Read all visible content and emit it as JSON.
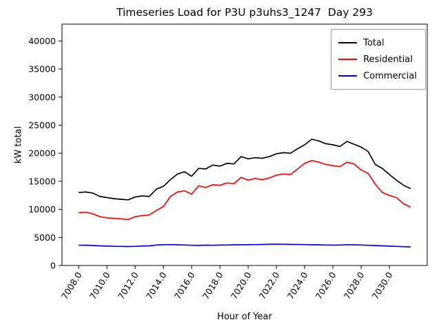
{
  "chart_data": {
    "type": "line",
    "title": "Timeseries Load for P3U p3uhs3_1247  Day 293",
    "xlabel": "Hour of Year",
    "ylabel": "kW total",
    "xlim": [
      7006.82,
      7032.68
    ],
    "ylim": [
      0,
      43000
    ],
    "xticks": [
      7008.0,
      7010.0,
      7012.0,
      7014.0,
      7016.0,
      7018.0,
      7020.0,
      7022.0,
      7024.0,
      7026.0,
      7028.0,
      7030.0
    ],
    "yticks": [
      0,
      5000,
      10000,
      15000,
      20000,
      25000,
      30000,
      35000,
      40000
    ],
    "grid": false,
    "legend_position": "upper right",
    "x": [
      7008.0,
      7008.5,
      7009.0,
      7009.5,
      7010.0,
      7010.5,
      7011.0,
      7011.5,
      7012.0,
      7012.5,
      7013.0,
      7013.5,
      7014.0,
      7014.5,
      7015.0,
      7015.5,
      7016.0,
      7016.5,
      7017.0,
      7017.5,
      7018.0,
      7018.5,
      7019.0,
      7019.5,
      7020.0,
      7020.5,
      7021.0,
      7021.5,
      7022.0,
      7022.5,
      7023.0,
      7023.5,
      7024.0,
      7024.5,
      7025.0,
      7025.5,
      7026.0,
      7026.5,
      7027.0,
      7027.5,
      7028.0,
      7028.5,
      7029.0,
      7029.5,
      7030.0,
      7030.5,
      7031.0,
      7031.5
    ],
    "series": [
      {
        "name": "Total",
        "color": "#000000",
        "values": [
          13000,
          13100,
          12900,
          12300,
          12100,
          11900,
          11800,
          11700,
          12200,
          12400,
          12300,
          13600,
          14100,
          15300,
          16300,
          16700,
          15900,
          17300,
          17200,
          17900,
          17700,
          18200,
          18100,
          19400,
          19000,
          19200,
          19100,
          19400,
          19900,
          20100,
          20000,
          20800,
          21500,
          22500,
          22200,
          21700,
          21500,
          21200,
          22100,
          21600,
          21100,
          20300,
          18000,
          17300,
          16200,
          15200,
          14300,
          13700
        ]
      },
      {
        "name": "Residential",
        "color": "#ff0000",
        "values": [
          9400,
          9500,
          9200,
          8700,
          8500,
          8400,
          8300,
          8200,
          8700,
          8900,
          9000,
          9800,
          10500,
          12300,
          13100,
          13300,
          12700,
          14200,
          13900,
          14400,
          14300,
          14700,
          14600,
          15700,
          15200,
          15500,
          15300,
          15600,
          16100,
          16300,
          16200,
          17200,
          18200,
          18700,
          18400,
          18000,
          17800,
          17600,
          18400,
          18100,
          17000,
          16400,
          14500,
          13000,
          12500,
          12100,
          11000,
          10400
        ]
      },
      {
        "name": "Commercial",
        "color": "#0000ff",
        "values": [
          3600,
          3620,
          3560,
          3500,
          3450,
          3420,
          3400,
          3380,
          3400,
          3450,
          3500,
          3650,
          3700,
          3720,
          3680,
          3650,
          3600,
          3580,
          3620,
          3600,
          3640,
          3650,
          3680,
          3700,
          3700,
          3720,
          3750,
          3780,
          3800,
          3780,
          3760,
          3750,
          3720,
          3700,
          3680,
          3650,
          3620,
          3650,
          3700,
          3680,
          3650,
          3600,
          3550,
          3500,
          3450,
          3400,
          3350,
          3300
        ]
      }
    ]
  }
}
